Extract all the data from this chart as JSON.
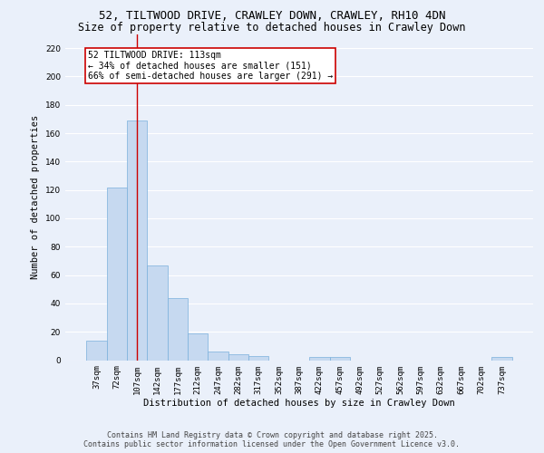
{
  "title1": "52, TILTWOOD DRIVE, CRAWLEY DOWN, CRAWLEY, RH10 4DN",
  "title2": "Size of property relative to detached houses in Crawley Down",
  "xlabel": "Distribution of detached houses by size in Crawley Down",
  "ylabel": "Number of detached properties",
  "categories": [
    "37sqm",
    "72sqm",
    "107sqm",
    "142sqm",
    "177sqm",
    "212sqm",
    "247sqm",
    "282sqm",
    "317sqm",
    "352sqm",
    "387sqm",
    "422sqm",
    "457sqm",
    "492sqm",
    "527sqm",
    "562sqm",
    "597sqm",
    "632sqm",
    "667sqm",
    "702sqm",
    "737sqm"
  ],
  "values": [
    14,
    122,
    169,
    67,
    44,
    19,
    6,
    4,
    3,
    0,
    0,
    2,
    2,
    0,
    0,
    0,
    0,
    0,
    0,
    0,
    2
  ],
  "bar_color": "#c6d9f0",
  "bar_edge_color": "#7ab0dc",
  "vline_x": 2,
  "vline_color": "#cc0000",
  "ylim": [
    0,
    230
  ],
  "yticks": [
    0,
    20,
    40,
    60,
    80,
    100,
    120,
    140,
    160,
    180,
    200,
    220
  ],
  "annotation_title": "52 TILTWOOD DRIVE: 113sqm",
  "annotation_line1": "← 34% of detached houses are smaller (151)",
  "annotation_line2": "66% of semi-detached houses are larger (291) →",
  "annotation_box_color": "#ffffff",
  "annotation_box_edge": "#cc0000",
  "footer1": "Contains HM Land Registry data © Crown copyright and database right 2025.",
  "footer2": "Contains public sector information licensed under the Open Government Licence v3.0.",
  "bg_color": "#eaf0fa",
  "grid_color": "#ffffff",
  "title_fontsize": 9,
  "subtitle_fontsize": 8.5,
  "axis_label_fontsize": 7.5,
  "tick_fontsize": 6.5,
  "annotation_fontsize": 7,
  "footer_fontsize": 6
}
